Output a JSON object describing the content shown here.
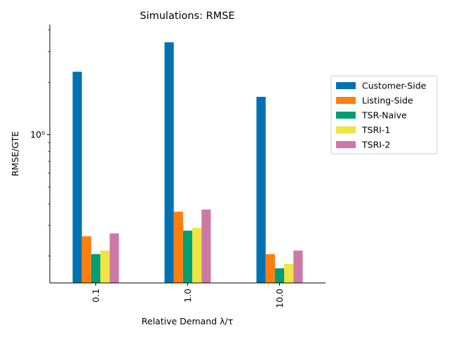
{
  "chart_data": {
    "type": "bar",
    "title": "Simulations: RMSE",
    "xlabel": "Relative Demand λ/τ",
    "ylabel": "RMSE/GTE",
    "yscale": "log",
    "ylim": [
      0.14,
      4.3
    ],
    "yticks": [
      {
        "value": 1.0,
        "label": "10⁰"
      }
    ],
    "yminor_ticks": [
      0.2,
      0.3,
      0.4,
      0.5,
      0.6,
      0.7,
      0.8,
      0.9,
      2,
      3,
      4
    ],
    "categories": [
      "0.1",
      "1.0",
      "10.0"
    ],
    "series": [
      {
        "name": "Customer-Side",
        "color": "#0072b2",
        "values": [
          2.3,
          3.4,
          1.65
        ]
      },
      {
        "name": "Listing-Side",
        "color": "#ff7f0e",
        "values": [
          0.26,
          0.36,
          0.205
        ]
      },
      {
        "name": "TSR-Naive",
        "color": "#009e73",
        "values": [
          0.205,
          0.28,
          0.17
        ]
      },
      {
        "name": "TSRI-1",
        "color": "#f0e442",
        "values": [
          0.215,
          0.29,
          0.18
        ]
      },
      {
        "name": "TSRI-2",
        "color": "#cc79a7",
        "values": [
          0.27,
          0.37,
          0.215
        ]
      }
    ],
    "legend": "right",
    "grid": false
  }
}
